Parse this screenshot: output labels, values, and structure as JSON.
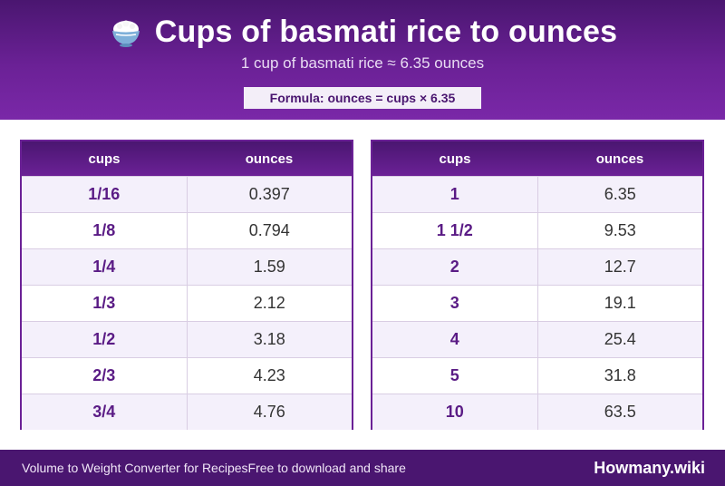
{
  "header": {
    "icon": "rice-bowl-icon",
    "title": "Cups of basmati rice to ounces",
    "subtitle": "1 cup of basmati rice ≈ 6.35 ounces",
    "formula": "Formula: ounces = cups × 6.35"
  },
  "tables": [
    {
      "headers": [
        "cups",
        "ounces"
      ],
      "rows": [
        {
          "cups": "1/16",
          "ounces": "0.397"
        },
        {
          "cups": "1/8",
          "ounces": "0.794"
        },
        {
          "cups": "1/4",
          "ounces": "1.59"
        },
        {
          "cups": "1/3",
          "ounces": "2.12"
        },
        {
          "cups": "1/2",
          "ounces": "3.18"
        },
        {
          "cups": "2/3",
          "ounces": "4.23"
        },
        {
          "cups": "3/4",
          "ounces": "4.76"
        }
      ]
    },
    {
      "headers": [
        "cups",
        "ounces"
      ],
      "rows": [
        {
          "cups": "1",
          "ounces": "6.35"
        },
        {
          "cups": "1 1/2",
          "ounces": "9.53"
        },
        {
          "cups": "2",
          "ounces": "12.7"
        },
        {
          "cups": "3",
          "ounces": "19.1"
        },
        {
          "cups": "4",
          "ounces": "25.4"
        },
        {
          "cups": "5",
          "ounces": "31.8"
        },
        {
          "cups": "10",
          "ounces": "63.5"
        }
      ]
    }
  ],
  "footer": {
    "left_text": "Volume to Weight Converter for RecipesFree to download and share",
    "brand": "Howmany.wiki"
  },
  "colors": {
    "brand_purple": "#6b2196",
    "dark_purple": "#4a1670",
    "row_tint": "#f4f0fb"
  }
}
